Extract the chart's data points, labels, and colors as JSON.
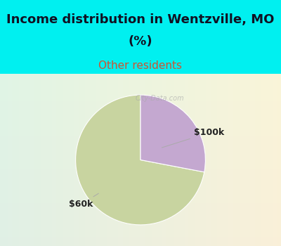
{
  "title_line1": "Income distribution in Wentzville, MO",
  "title_line2": "(%)",
  "subtitle": "Other residents",
  "slices": [
    72,
    28
  ],
  "labels": [
    "$60k",
    "$100k"
  ],
  "colors": [
    "#c8d4a0",
    "#c4a8d0"
  ],
  "bg_top": "#00f0f0",
  "bg_chart": "#dff0e8",
  "title_color": "#111122",
  "subtitle_color": "#cc5533",
  "label_color": "#222222",
  "title_fontsize": 13,
  "subtitle_fontsize": 11,
  "label_fontsize": 9,
  "startangle": 90,
  "watermark": "City-Data.com"
}
